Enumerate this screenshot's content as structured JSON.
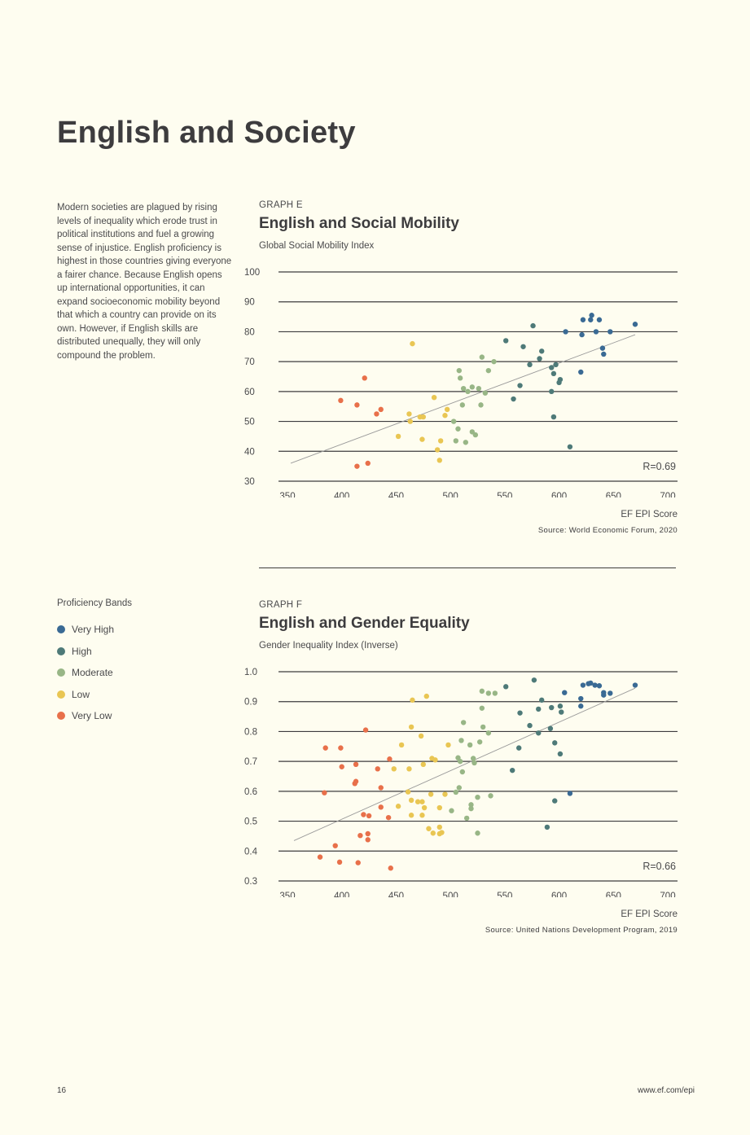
{
  "page": {
    "title": "English and Society",
    "intro": "Modern societies are plagued by rising levels of inequality which erode trust in political institutions and fuel a growing sense of injustice. English proficiency is highest in those countries giving everyone a fairer chance. Because English opens up international opportunities, it can expand socioeconomic mobility beyond that which a country can provide on its own. However, if English skills are distributed unequally, they will only compound the problem.",
    "page_number": "16",
    "url": "www.ef.com/epi"
  },
  "legend": {
    "title": "Proficiency Bands",
    "items": [
      {
        "label": "Very High",
        "color": "#3a6a94"
      },
      {
        "label": "High",
        "color": "#4e7a78"
      },
      {
        "label": "Moderate",
        "color": "#98b686"
      },
      {
        "label": "Low",
        "color": "#e9c653"
      },
      {
        "label": "Very Low",
        "color": "#e8704a"
      }
    ]
  },
  "colors": {
    "Very High": "#3a6a94",
    "High": "#4e7a78",
    "Moderate": "#98b686",
    "Low": "#e9c653",
    "Very Low": "#e8704a",
    "gridline": "#3d3c3e",
    "trendline": "#9a9a9a"
  },
  "chart_data": [
    {
      "type": "scatter",
      "kicker": "GRAPH E",
      "title": "English and Social Mobility",
      "ylabel": "Global Social Mobility Index",
      "xlabel": "EF EPI Score",
      "source": "Source: World Economic Forum, 2020",
      "annotation": "R=0.69",
      "xlim": [
        350,
        700
      ],
      "ylim": [
        30,
        100
      ],
      "xticks": [
        "350",
        "400",
        "450",
        "500",
        "550",
        "600",
        "650",
        "700"
      ],
      "yticks": [
        "30",
        "40",
        "50",
        "60",
        "70",
        "80",
        "90",
        "100"
      ],
      "ytick_values": [
        30,
        40,
        50,
        60,
        70,
        80,
        90,
        100
      ],
      "grid": "horizontal",
      "trendline": {
        "x": [
          353,
          670
        ],
        "y": [
          36,
          79
        ]
      },
      "series": [
        {
          "name": "Very Low",
          "points": [
            [
              399,
              57
            ],
            [
              414,
              55.5
            ],
            [
              421,
              64.5
            ],
            [
              432,
              52.5
            ],
            [
              436,
              54
            ],
            [
              414,
              35
            ],
            [
              424,
              36
            ]
          ]
        },
        {
          "name": "Low",
          "points": [
            [
              465,
              76
            ],
            [
              485,
              58
            ],
            [
              462,
              52.5
            ],
            [
              463,
              50
            ],
            [
              472,
              51.5
            ],
            [
              475,
              51.5
            ],
            [
              488,
              40.5
            ],
            [
              490,
              37
            ],
            [
              491,
              43.5
            ],
            [
              495,
              52
            ],
            [
              497,
              54
            ],
            [
              474,
              44
            ],
            [
              452,
              45
            ]
          ]
        },
        {
          "name": "Moderate",
          "points": [
            [
              508,
              67
            ],
            [
              509,
              64.5
            ],
            [
              512,
              61
            ],
            [
              516,
              60
            ],
            [
              520,
              61.5
            ],
            [
              526,
              61
            ],
            [
              528,
              55.5
            ],
            [
              529,
              71.5
            ],
            [
              535,
              67
            ],
            [
              540,
              70
            ],
            [
              532,
              59.5
            ],
            [
              511,
              55.5
            ],
            [
              503,
              50
            ],
            [
              507,
              47.5
            ],
            [
              520,
              46.5
            ],
            [
              523,
              45.5
            ],
            [
              505,
              43.5
            ],
            [
              514,
              43
            ]
          ]
        },
        {
          "name": "High",
          "points": [
            [
              551,
              77
            ],
            [
              567,
              75
            ],
            [
              576,
              82
            ],
            [
              584,
              73.5
            ],
            [
              582,
              71
            ],
            [
              573,
              69
            ],
            [
              564,
              62
            ],
            [
              558,
              57.5
            ],
            [
              597,
              69
            ],
            [
              593,
              68
            ],
            [
              595,
              66
            ],
            [
              601,
              64
            ],
            [
              600,
              63
            ],
            [
              593,
              60
            ],
            [
              595,
              51.5
            ],
            [
              610,
              41.5
            ]
          ]
        },
        {
          "name": "Very High",
          "points": [
            [
              606,
              80
            ],
            [
              621,
              79
            ],
            [
              622,
              84
            ],
            [
              630,
              85.5
            ],
            [
              629,
              84
            ],
            [
              637,
              84
            ],
            [
              634,
              80
            ],
            [
              647,
              80
            ],
            [
              640,
              74.5
            ],
            [
              641,
              72.5
            ],
            [
              670,
              82.5
            ],
            [
              620,
              66.5
            ]
          ]
        }
      ]
    },
    {
      "type": "scatter",
      "kicker": "GRAPH F",
      "title": "English and Gender Equality",
      "ylabel": "Gender Inequality Index (Inverse)",
      "xlabel": "EF EPI Score",
      "source": "Source: United Nations Development Program, 2019",
      "annotation": "R=0.66",
      "xlim": [
        350,
        700
      ],
      "ylim": [
        0.3,
        1.0
      ],
      "xticks": [
        "350",
        "400",
        "450",
        "500",
        "550",
        "600",
        "650",
        "700"
      ],
      "yticks": [
        "0.3",
        "0.4",
        "0.5",
        "0.6",
        "0.7",
        "0.8",
        "0.9",
        "1.0"
      ],
      "ytick_values": [
        0.3,
        0.4,
        0.5,
        0.6,
        0.7,
        0.8,
        0.9,
        1.0
      ],
      "grid": "horizontal",
      "trendline": {
        "x": [
          356,
          670
        ],
        "y": [
          0.435,
          0.945
        ]
      },
      "series": [
        {
          "name": "Very Low",
          "points": [
            [
              422,
              0.805
            ],
            [
              385,
              0.745
            ],
            [
              399,
              0.745
            ],
            [
              400,
              0.682
            ],
            [
              413,
              0.69
            ],
            [
              413,
              0.633
            ],
            [
              412,
              0.626
            ],
            [
              433,
              0.675
            ],
            [
              444,
              0.708
            ],
            [
              436,
              0.612
            ],
            [
              384,
              0.595
            ],
            [
              420,
              0.522
            ],
            [
              425,
              0.518
            ],
            [
              443,
              0.512
            ],
            [
              436,
              0.547
            ],
            [
              417,
              0.452
            ],
            [
              424,
              0.458
            ],
            [
              424,
              0.438
            ],
            [
              394,
              0.418
            ],
            [
              380,
              0.38
            ],
            [
              398,
              0.363
            ],
            [
              415,
              0.361
            ],
            [
              445,
              0.343
            ]
          ]
        },
        {
          "name": "Low",
          "points": [
            [
              465,
              0.905
            ],
            [
              478,
              0.918
            ],
            [
              464,
              0.815
            ],
            [
              473,
              0.785
            ],
            [
              455,
              0.755
            ],
            [
              448,
              0.675
            ],
            [
              462,
              0.675
            ],
            [
              486,
              0.705
            ],
            [
              475,
              0.69
            ],
            [
              483,
              0.71
            ],
            [
              498,
              0.755
            ],
            [
              464,
              0.57
            ],
            [
              470,
              0.565
            ],
            [
              474,
              0.565
            ],
            [
              482,
              0.59
            ],
            [
              495,
              0.59
            ],
            [
              461,
              0.598
            ],
            [
              452,
              0.55
            ],
            [
              464,
              0.52
            ],
            [
              474,
              0.52
            ],
            [
              476,
              0.545
            ],
            [
              490,
              0.545
            ],
            [
              480,
              0.475
            ],
            [
              490,
              0.48
            ],
            [
              484,
              0.46
            ],
            [
              490,
              0.458
            ],
            [
              492,
              0.462
            ]
          ]
        },
        {
          "name": "Moderate",
          "points": [
            [
              529,
              0.935
            ],
            [
              535,
              0.928
            ],
            [
              541,
              0.928
            ],
            [
              529,
              0.878
            ],
            [
              530,
              0.815
            ],
            [
              512,
              0.83
            ],
            [
              510,
              0.77
            ],
            [
              518,
              0.755
            ],
            [
              527,
              0.765
            ],
            [
              535,
              0.795
            ],
            [
              507,
              0.712
            ],
            [
              509,
              0.7
            ],
            [
              511,
              0.665
            ],
            [
              521,
              0.71
            ],
            [
              522,
              0.695
            ],
            [
              505,
              0.597
            ],
            [
              508,
              0.612
            ],
            [
              519,
              0.555
            ],
            [
              519,
              0.542
            ],
            [
              525,
              0.58
            ],
            [
              537,
              0.585
            ],
            [
              501,
              0.535
            ],
            [
              515,
              0.51
            ],
            [
              525,
              0.46
            ]
          ]
        },
        {
          "name": "High",
          "points": [
            [
              551,
              0.95
            ],
            [
              577,
              0.972
            ],
            [
              564,
              0.862
            ],
            [
              584,
              0.905
            ],
            [
              581,
              0.875
            ],
            [
              573,
              0.82
            ],
            [
              593,
              0.88
            ],
            [
              601,
              0.885
            ],
            [
              602,
              0.865
            ],
            [
              592,
              0.81
            ],
            [
              581,
              0.795
            ],
            [
              563,
              0.745
            ],
            [
              596,
              0.762
            ],
            [
              601,
              0.725
            ],
            [
              557,
              0.67
            ],
            [
              589,
              0.48
            ],
            [
              596,
              0.568
            ]
          ]
        },
        {
          "name": "Very High",
          "points": [
            [
              605,
              0.93
            ],
            [
              620,
              0.91
            ],
            [
              622,
              0.955
            ],
            [
              627,
              0.96
            ],
            [
              629,
              0.962
            ],
            [
              633,
              0.955
            ],
            [
              637,
              0.953
            ],
            [
              641,
              0.93
            ],
            [
              641,
              0.922
            ],
            [
              647,
              0.928
            ],
            [
              670,
              0.955
            ],
            [
              620,
              0.885
            ],
            [
              610,
              0.593
            ]
          ]
        }
      ]
    }
  ]
}
